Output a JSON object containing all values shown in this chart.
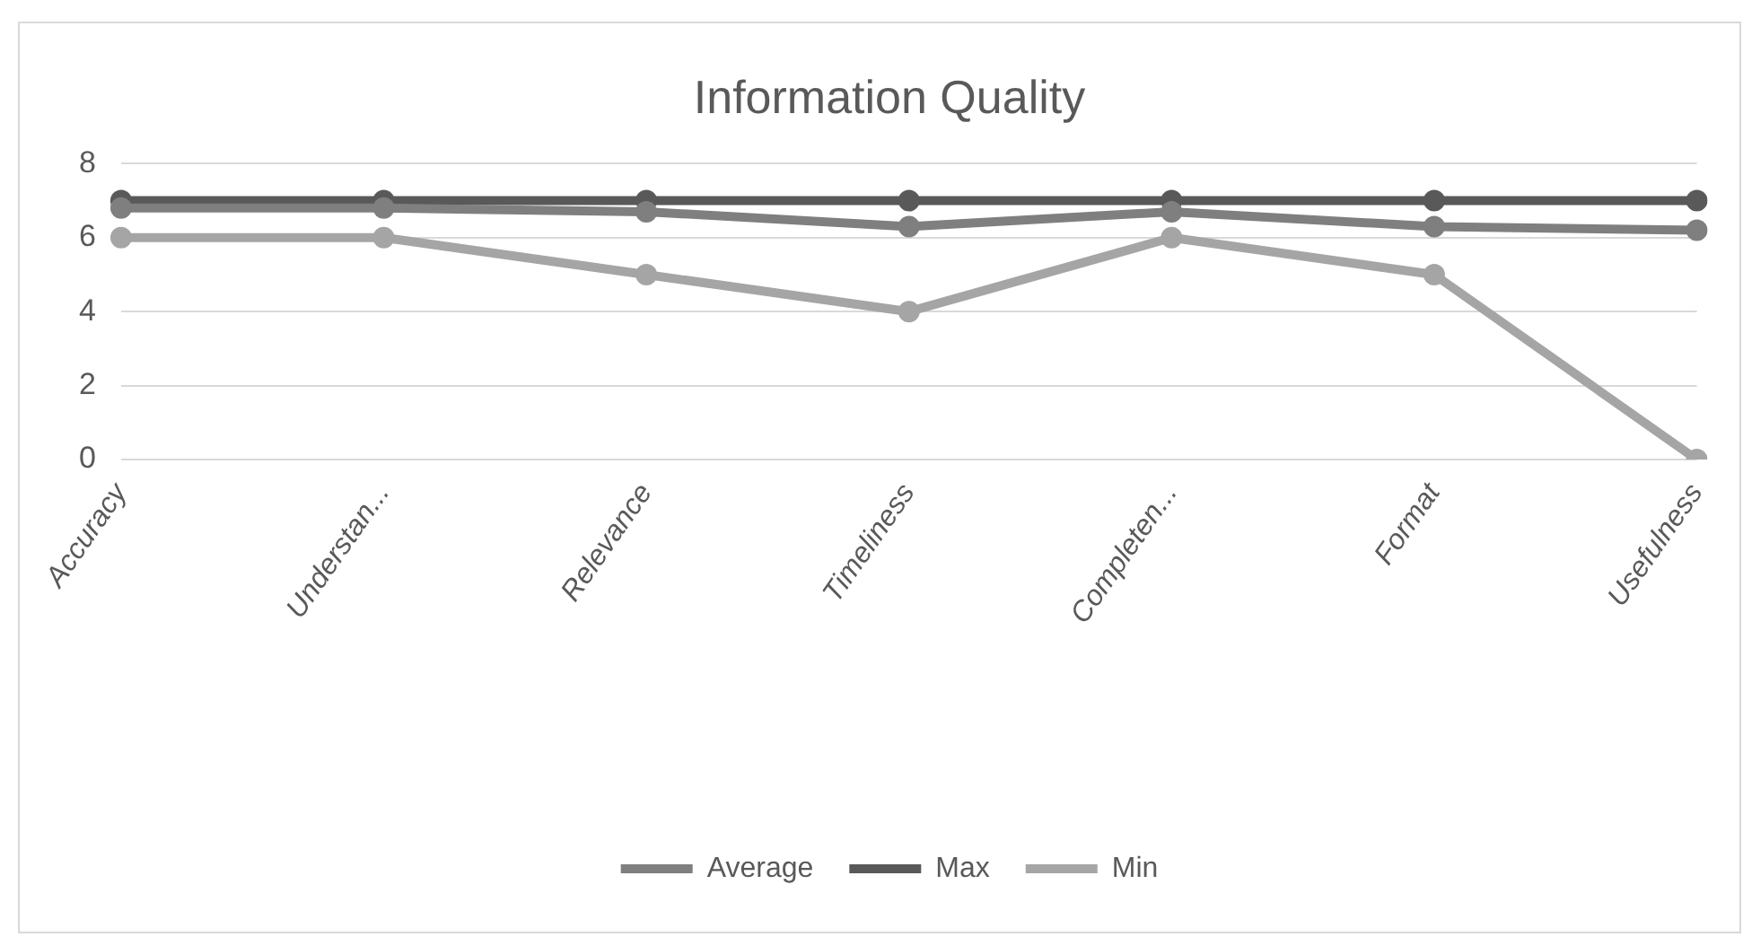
{
  "chart_data": {
    "type": "line",
    "title": "Information Quality",
    "categories": [
      "Accuracy",
      "Understan...",
      "Relevance",
      "Timeliness",
      "Completen...",
      "Format",
      "Usefulness"
    ],
    "series": [
      {
        "name": "Average",
        "color": "#7f7f7f",
        "values": [
          6.8,
          6.8,
          6.7,
          6.3,
          6.7,
          6.3,
          6.2
        ]
      },
      {
        "name": "Max",
        "color": "#595959",
        "values": [
          7,
          7,
          7,
          7,
          7,
          7,
          7
        ]
      },
      {
        "name": "Min",
        "color": "#a5a5a5",
        "values": [
          6,
          6,
          5,
          4,
          6,
          5,
          0
        ]
      }
    ],
    "ylim": [
      0,
      8
    ],
    "yticks": [
      0,
      2,
      4,
      6,
      8
    ],
    "grid": "y",
    "legend": "bottom",
    "marker": "circle",
    "line_style": "solid"
  }
}
